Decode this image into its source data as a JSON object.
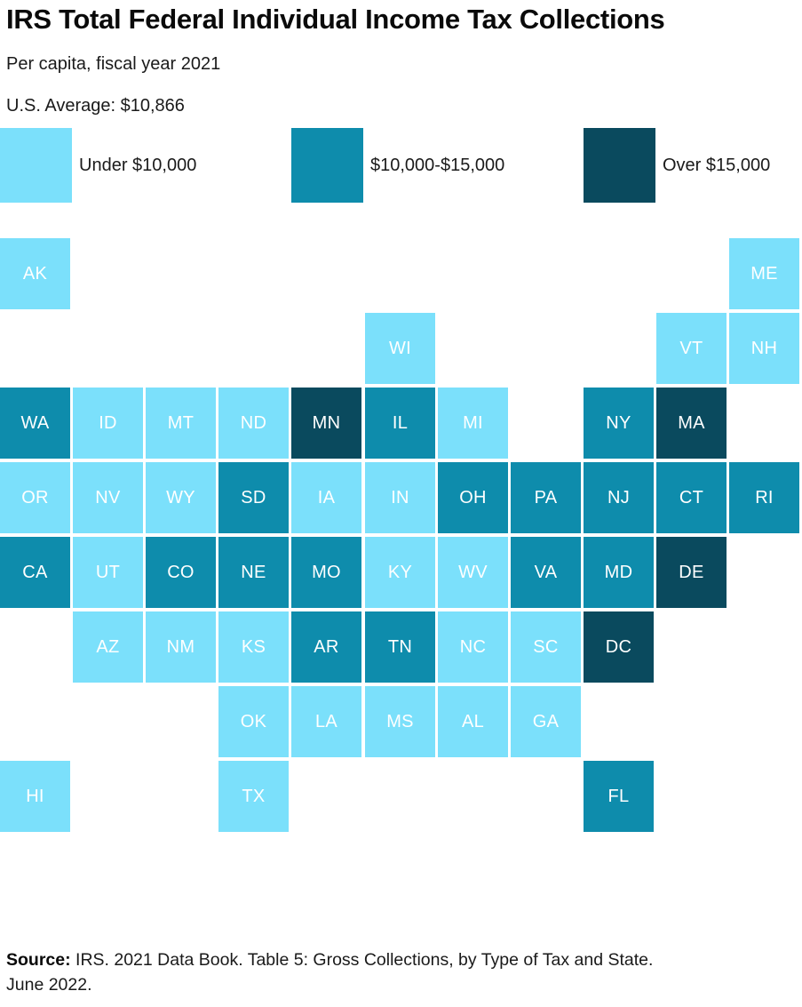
{
  "header": {
    "title": "IRS Total Federal Individual Income Tax Collections",
    "subtitle": "Per capita, fiscal year 2021",
    "average": "U.S. Average: $10,866"
  },
  "legend": {
    "items": [
      {
        "label": "Under $10,000",
        "color": "#7BE0FB"
      },
      {
        "label": "$10,000-$15,000",
        "color": "#0E8CAC"
      },
      {
        "label": "Over $15,000",
        "color": "#0A4A5E"
      }
    ]
  },
  "source": {
    "bold": "Source:",
    "line1": " IRS. 2021 Data Book. Table 5: Gross Collections, by Type of Tax and State.",
    "line2": "June 2022."
  },
  "chart_data": {
    "type": "heatmap",
    "subtype": "state-tile-grid-map",
    "title": "IRS Total Federal Individual Income Tax Collections",
    "subtitle": "Per capita, fiscal year 2021",
    "us_average_dollars": 10866,
    "legend_position": "top",
    "bins": [
      {
        "index": 0,
        "label": "Under $10,000",
        "color": "#7BE0FB"
      },
      {
        "index": 1,
        "label": "$10,000-$15,000",
        "color": "#0E8CAC"
      },
      {
        "index": 2,
        "label": "Over $15,000",
        "color": "#0A4A5E"
      }
    ],
    "grid": {
      "rows": 8,
      "cols": 11
    },
    "states": [
      {
        "abbr": "AK",
        "row": 1,
        "col": 1,
        "bin": 0
      },
      {
        "abbr": "ME",
        "row": 1,
        "col": 11,
        "bin": 0
      },
      {
        "abbr": "WI",
        "row": 2,
        "col": 6,
        "bin": 0
      },
      {
        "abbr": "VT",
        "row": 2,
        "col": 10,
        "bin": 0
      },
      {
        "abbr": "NH",
        "row": 2,
        "col": 11,
        "bin": 0
      },
      {
        "abbr": "WA",
        "row": 3,
        "col": 1,
        "bin": 1
      },
      {
        "abbr": "ID",
        "row": 3,
        "col": 2,
        "bin": 0
      },
      {
        "abbr": "MT",
        "row": 3,
        "col": 3,
        "bin": 0
      },
      {
        "abbr": "ND",
        "row": 3,
        "col": 4,
        "bin": 0
      },
      {
        "abbr": "MN",
        "row": 3,
        "col": 5,
        "bin": 2
      },
      {
        "abbr": "IL",
        "row": 3,
        "col": 6,
        "bin": 1
      },
      {
        "abbr": "MI",
        "row": 3,
        "col": 7,
        "bin": 0
      },
      {
        "abbr": "NY",
        "row": 3,
        "col": 9,
        "bin": 1
      },
      {
        "abbr": "MA",
        "row": 3,
        "col": 10,
        "bin": 2
      },
      {
        "abbr": "OR",
        "row": 4,
        "col": 1,
        "bin": 0
      },
      {
        "abbr": "NV",
        "row": 4,
        "col": 2,
        "bin": 0
      },
      {
        "abbr": "WY",
        "row": 4,
        "col": 3,
        "bin": 0
      },
      {
        "abbr": "SD",
        "row": 4,
        "col": 4,
        "bin": 1
      },
      {
        "abbr": "IA",
        "row": 4,
        "col": 5,
        "bin": 0
      },
      {
        "abbr": "IN",
        "row": 4,
        "col": 6,
        "bin": 0
      },
      {
        "abbr": "OH",
        "row": 4,
        "col": 7,
        "bin": 1
      },
      {
        "abbr": "PA",
        "row": 4,
        "col": 8,
        "bin": 1
      },
      {
        "abbr": "NJ",
        "row": 4,
        "col": 9,
        "bin": 1
      },
      {
        "abbr": "CT",
        "row": 4,
        "col": 10,
        "bin": 1
      },
      {
        "abbr": "RI",
        "row": 4,
        "col": 11,
        "bin": 1
      },
      {
        "abbr": "CA",
        "row": 5,
        "col": 1,
        "bin": 1
      },
      {
        "abbr": "UT",
        "row": 5,
        "col": 2,
        "bin": 0
      },
      {
        "abbr": "CO",
        "row": 5,
        "col": 3,
        "bin": 1
      },
      {
        "abbr": "NE",
        "row": 5,
        "col": 4,
        "bin": 1
      },
      {
        "abbr": "MO",
        "row": 5,
        "col": 5,
        "bin": 1
      },
      {
        "abbr": "KY",
        "row": 5,
        "col": 6,
        "bin": 0
      },
      {
        "abbr": "WV",
        "row": 5,
        "col": 7,
        "bin": 0
      },
      {
        "abbr": "VA",
        "row": 5,
        "col": 8,
        "bin": 1
      },
      {
        "abbr": "MD",
        "row": 5,
        "col": 9,
        "bin": 1
      },
      {
        "abbr": "DE",
        "row": 5,
        "col": 10,
        "bin": 2
      },
      {
        "abbr": "AZ",
        "row": 6,
        "col": 2,
        "bin": 0
      },
      {
        "abbr": "NM",
        "row": 6,
        "col": 3,
        "bin": 0
      },
      {
        "abbr": "KS",
        "row": 6,
        "col": 4,
        "bin": 0
      },
      {
        "abbr": "AR",
        "row": 6,
        "col": 5,
        "bin": 1
      },
      {
        "abbr": "TN",
        "row": 6,
        "col": 6,
        "bin": 1
      },
      {
        "abbr": "NC",
        "row": 6,
        "col": 7,
        "bin": 0
      },
      {
        "abbr": "SC",
        "row": 6,
        "col": 8,
        "bin": 0
      },
      {
        "abbr": "DC",
        "row": 6,
        "col": 9,
        "bin": 2
      },
      {
        "abbr": "OK",
        "row": 7,
        "col": 4,
        "bin": 0
      },
      {
        "abbr": "LA",
        "row": 7,
        "col": 5,
        "bin": 0
      },
      {
        "abbr": "MS",
        "row": 7,
        "col": 6,
        "bin": 0
      },
      {
        "abbr": "AL",
        "row": 7,
        "col": 7,
        "bin": 0
      },
      {
        "abbr": "GA",
        "row": 7,
        "col": 8,
        "bin": 0
      },
      {
        "abbr": "HI",
        "row": 8,
        "col": 1,
        "bin": 0
      },
      {
        "abbr": "TX",
        "row": 8,
        "col": 4,
        "bin": 0
      },
      {
        "abbr": "FL",
        "row": 8,
        "col": 9,
        "bin": 1
      }
    ]
  }
}
